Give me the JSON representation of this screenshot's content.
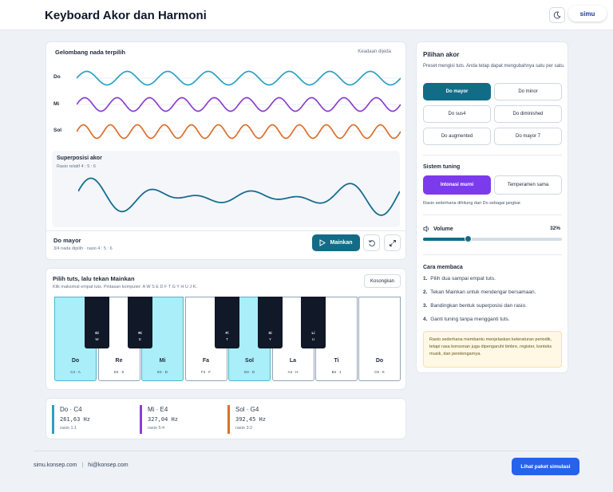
{
  "app": {
    "title": "Keyboard Akor dan Harmoni",
    "logo": "simu"
  },
  "waves": {
    "title": "Gelombang nada terpilih",
    "status": "Keadaan dijeda",
    "rows": [
      {
        "label": "Do",
        "color": "#2e9fc4",
        "cycles": 8
      },
      {
        "label": "Mi",
        "color": "#8b3fd1",
        "cycles": 10
      },
      {
        "label": "Sol",
        "color": "#dc6f2c",
        "cycles": 12
      }
    ],
    "superposition": {
      "title": "Superposisi akor",
      "ratio": "Rasio relatif 4 : 5 : 6",
      "color": "#176e8e"
    },
    "chord_name": "Do mayor",
    "chord_sub": "3/4 nada dipilih · rasio 4 : 5 : 6",
    "play_label": "Mainkan"
  },
  "keyboard": {
    "title": "Pilih tuts, lalu tekan Mainkan",
    "hint": "Klik maksimal empat tuts. Pintasan komputer: A W S E D F T G Y H U J K.",
    "clear_label": "Kosongkan",
    "white_keys": [
      {
        "name": "Do",
        "sub": "C4 · A",
        "selected": true
      },
      {
        "name": "Re",
        "sub": "D4 · S",
        "selected": false
      },
      {
        "name": "Mi",
        "sub": "E4 · D",
        "selected": true
      },
      {
        "name": "Fa",
        "sub": "F4 · F",
        "selected": false
      },
      {
        "name": "Sol",
        "sub": "G4 · G",
        "selected": true
      },
      {
        "name": "La",
        "sub": "A4 · H",
        "selected": false
      },
      {
        "name": "Ti",
        "sub": "B4 · J",
        "selected": false
      },
      {
        "name": "Do",
        "sub": "C5 · K",
        "selected": false
      }
    ],
    "black_keys": [
      {
        "name": "Di",
        "sub": "W"
      },
      {
        "name": "Ri",
        "sub": "E"
      },
      {
        "name": "Fi",
        "sub": "T"
      },
      {
        "name": "Si",
        "sub": "Y"
      },
      {
        "name": "Li",
        "sub": "U"
      }
    ]
  },
  "notes": [
    {
      "title": "Do · C4",
      "hz": "261,63 Hz",
      "ratio": "rasio 1:1",
      "color": "#2e9fc4"
    },
    {
      "title": "Mi · E4",
      "hz": "327,04 Hz",
      "ratio": "rasio 5:4",
      "color": "#8b3fd1"
    },
    {
      "title": "Sol · G4",
      "hz": "392,45 Hz",
      "ratio": "rasio 3:2",
      "color": "#dc6f2c"
    }
  ],
  "chord_panel": {
    "title": "Pilihan akor",
    "desc": "Preset mengisi tuts. Anda tetap dapat mengubahnya satu per satu.",
    "presets": [
      {
        "label": "Do mayor",
        "active": true
      },
      {
        "label": "Do minor",
        "active": false
      },
      {
        "label": "Do sus4",
        "active": false
      },
      {
        "label": "Do diminished",
        "active": false
      },
      {
        "label": "Do augmented",
        "active": false
      },
      {
        "label": "Do mayor 7",
        "active": false
      }
    ],
    "tuning_title": "Sistem tuning",
    "tunings": [
      {
        "label": "Intonasi murni",
        "active": true
      },
      {
        "label": "Temperamen sama",
        "active": false
      }
    ],
    "tuning_note": "Rasio sederhana dihitung dari Do sebagai jangkar.",
    "volume_label": "Volume",
    "volume_value": "32%",
    "volume_fraction": 0.32,
    "read_title": "Cara membaca",
    "steps": [
      {
        "num": "1.",
        "text": "Pilih dua sampai empat tuts."
      },
      {
        "num": "2.",
        "text": "Tekan Mainkan untuk mendengar bersamaan."
      },
      {
        "num": "3.",
        "text": "Bandingkan bentuk superposisi dan rasio."
      },
      {
        "num": "4.",
        "text": "Ganti tuning tanpa mengganti tuts."
      }
    ],
    "note": "Rasio sederhana membantu menjelaskan keteraturan periodik, tetapi rasa konsonan juga dipengaruhi timbre, register, konteks musik, dan pendengarnya."
  },
  "footer": {
    "site": "simu.konsep.com",
    "separator": "|",
    "email": "hi@konsep.com",
    "cta": "Lihat paket simulasi"
  }
}
